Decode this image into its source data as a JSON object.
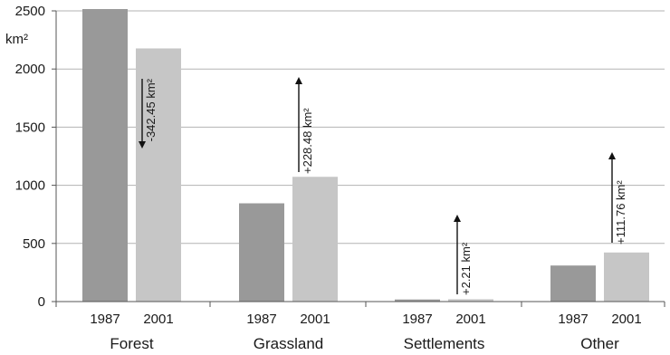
{
  "chart_data": {
    "type": "bar",
    "unit_label": "km²",
    "ylim": [
      0,
      2500
    ],
    "yticks": [
      0,
      500,
      1000,
      1500,
      2000,
      2500
    ],
    "grid": true,
    "categories": [
      "Forest",
      "Grassland",
      "Settlements",
      "Other"
    ],
    "series": [
      {
        "name": "1987",
        "color": "#999999",
        "values": [
          2520,
          845,
          18,
          310
        ]
      },
      {
        "name": "2001",
        "color": "#c6c6c6",
        "values": [
          2177,
          1073,
          20,
          422
        ]
      }
    ],
    "annotations": [
      {
        "category": "Forest",
        "text": "-342.45 km²",
        "direction": "down"
      },
      {
        "category": "Grassland",
        "text": "+228.48 km²",
        "direction": "up"
      },
      {
        "category": "Settlements",
        "text": "+2.21 km²",
        "direction": "up"
      },
      {
        "category": "Other",
        "text": "+111.76 km²",
        "direction": "up"
      }
    ]
  }
}
